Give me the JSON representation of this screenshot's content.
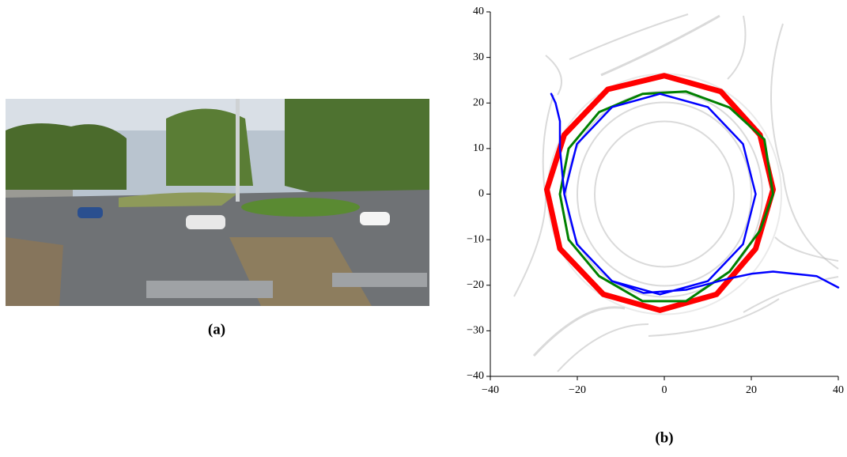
{
  "caption_a": "(a)",
  "chart_data": {
    "type": "line",
    "caption": "(b)",
    "xlim": [
      -40,
      40
    ],
    "xticks": [
      {
        "value": -40,
        "label": "−40"
      },
      {
        "value": -20,
        "label": "−20"
      },
      0,
      20,
      40
    ],
    "ylim": [
      -40,
      40
    ],
    "yticks": [
      {
        "value": -40,
        "label": "−40"
      },
      {
        "value": -30,
        "label": "−30"
      },
      {
        "value": -20,
        "label": "−20"
      },
      {
        "value": -10,
        "label": "−10"
      },
      0,
      10,
      20,
      30,
      40
    ],
    "series": [
      {
        "color": "#ff0000",
        "line_width": 7,
        "x": [
          25,
          22,
          13,
          0,
          -13,
          -23,
          -27,
          -24,
          -14,
          -1,
          12,
          21,
          25
        ],
        "values": [
          1,
          13,
          22.5,
          26,
          23,
          13,
          1,
          -12,
          -22,
          -25.5,
          -22,
          -12,
          1
        ]
      },
      {
        "color": "#008000",
        "line_width": 3,
        "x": [
          25,
          23,
          15,
          5,
          -5,
          -15,
          -22,
          -24,
          -22,
          -15,
          -5,
          5,
          15,
          22,
          25
        ],
        "values": [
          0,
          12,
          19,
          22.5,
          22,
          18,
          10,
          0,
          -10,
          -18,
          -23.5,
          -23.5,
          -17,
          -8,
          0
        ]
      },
      {
        "color": "#0000ff",
        "line_width": 2.5,
        "x": [
          -26,
          -25,
          -24,
          -24,
          -23,
          -20.1,
          -12,
          -1,
          10,
          18.1,
          21,
          18.1,
          10,
          -1,
          -12,
          -20.1,
          -23,
          -20.1,
          -12,
          -4.8,
          5,
          15,
          20,
          25,
          35,
          40
        ],
        "values": [
          22,
          20,
          16,
          10,
          0,
          -11,
          -19.1,
          -22,
          -19.1,
          -11,
          0,
          11,
          19.1,
          22,
          19.1,
          11,
          0,
          -11,
          -19.1,
          -21.7,
          -21,
          -18.5,
          -17.5,
          -17,
          -18,
          -20.5
        ]
      }
    ]
  }
}
